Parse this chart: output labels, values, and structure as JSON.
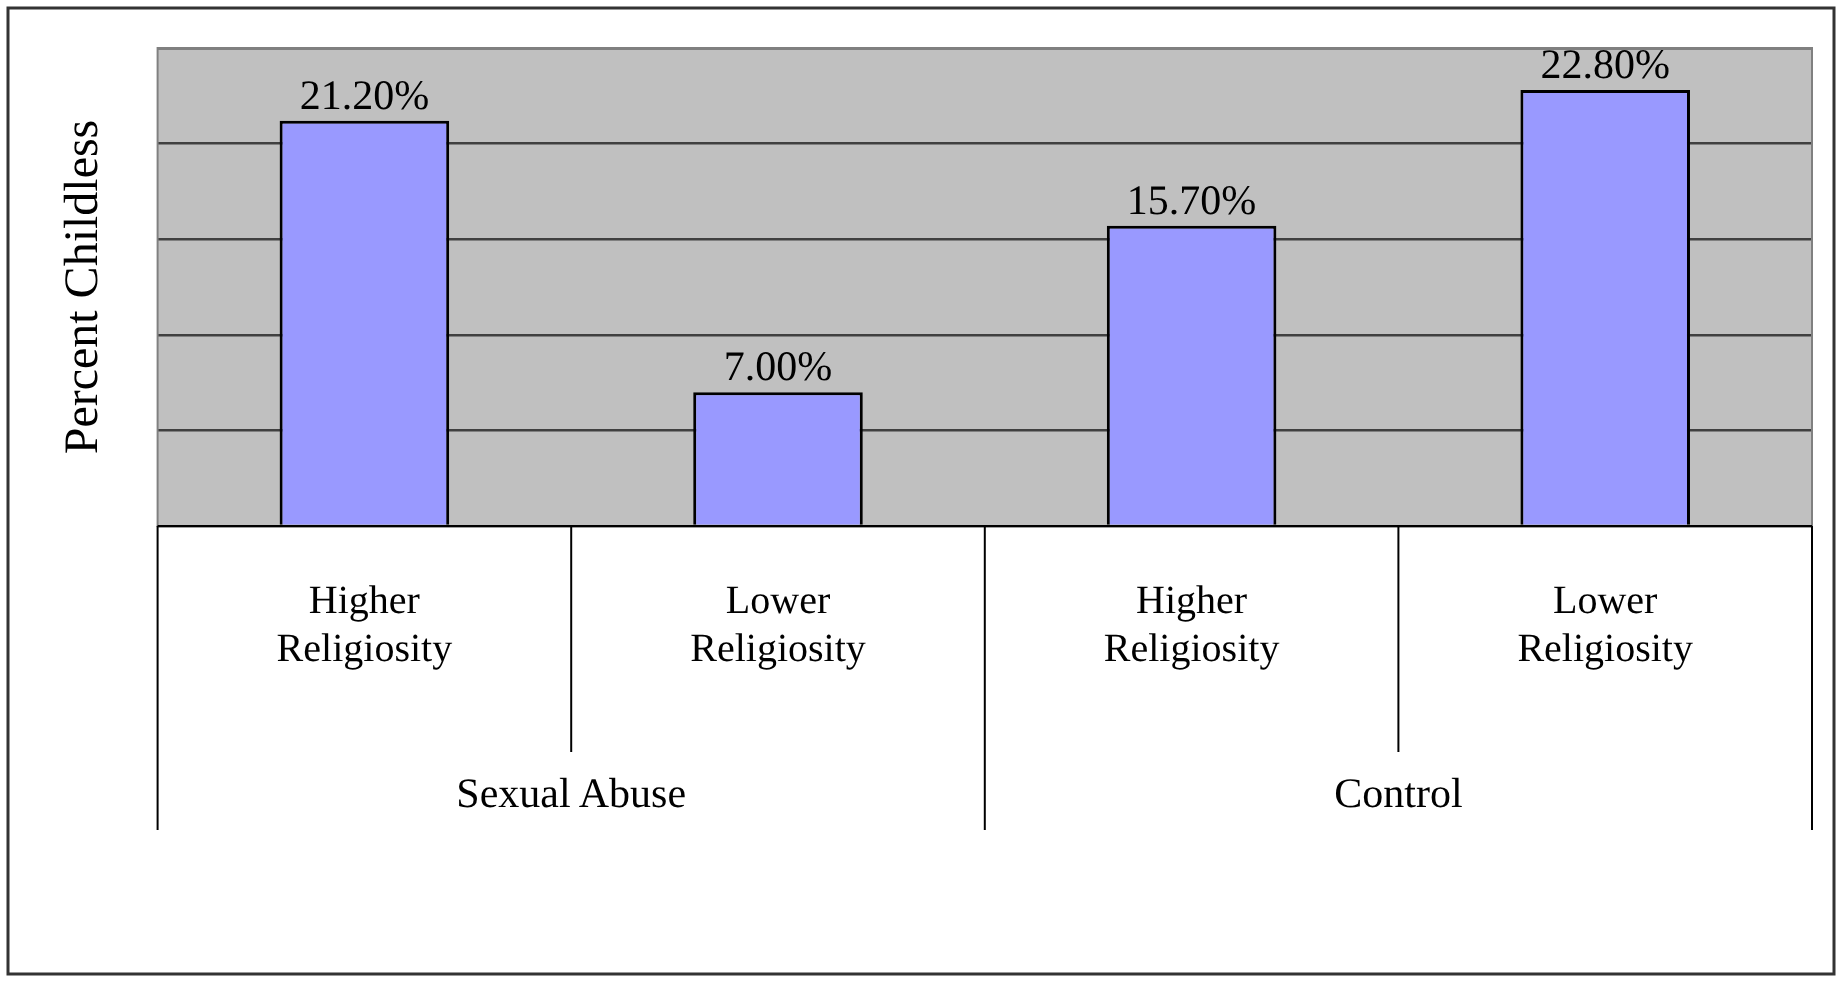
{
  "chart_data": {
    "type": "bar",
    "ylabel": "Percent Childless",
    "categories": [
      "Higher Religiosity",
      "Lower Religiosity",
      "Higher Religiosity",
      "Lower Religiosity"
    ],
    "values": [
      21.2,
      7.0,
      15.7,
      22.8
    ],
    "value_labels": [
      "21.20%",
      "7.00%",
      "15.70%",
      "22.80%"
    ],
    "color": "#9999ff",
    "tick_labels": "x",
    "grid": "y",
    "annotations": [
      "Sexual Abuse",
      "Control"
    ]
  }
}
